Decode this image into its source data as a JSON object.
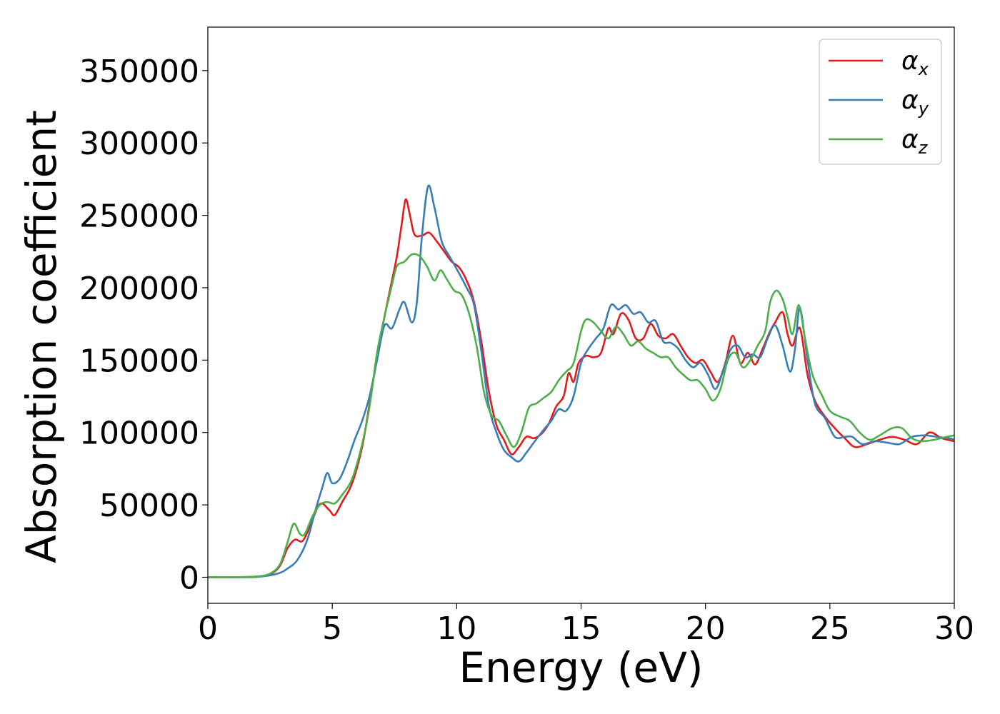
{
  "chart_data": {
    "type": "line",
    "title": "",
    "xlabel": "Energy (eV)",
    "ylabel": "Absorption coefficient",
    "xlim": [
      0,
      30
    ],
    "ylim": [
      -18000,
      380000
    ],
    "xticks": [
      0,
      5,
      10,
      15,
      20,
      25,
      30
    ],
    "yticks": [
      0,
      50000,
      100000,
      150000,
      200000,
      250000,
      300000,
      350000
    ],
    "grid": false,
    "legend_position": "top-right",
    "series": [
      {
        "name": "x",
        "legend_symbol": "α",
        "legend_subscript": "x",
        "color": "#e41a1c",
        "points": [
          [
            0,
            0
          ],
          [
            1,
            0
          ],
          [
            2,
            500
          ],
          [
            2.5,
            2000
          ],
          [
            2.9,
            8000
          ],
          [
            3.2,
            20000
          ],
          [
            3.5,
            26000
          ],
          [
            3.8,
            25000
          ],
          [
            4.1,
            35000
          ],
          [
            4.4,
            48000
          ],
          [
            4.6,
            51000
          ],
          [
            4.9,
            46000
          ],
          [
            5.1,
            43000
          ],
          [
            5.4,
            52000
          ],
          [
            5.8,
            65000
          ],
          [
            6.2,
            90000
          ],
          [
            6.5,
            120000
          ],
          [
            6.8,
            152000
          ],
          [
            7.1,
            180000
          ],
          [
            7.4,
            205000
          ],
          [
            7.6,
            222000
          ],
          [
            7.8,
            245000
          ],
          [
            7.95,
            261000
          ],
          [
            8.1,
            252000
          ],
          [
            8.3,
            237000
          ],
          [
            8.6,
            236000
          ],
          [
            8.9,
            238000
          ],
          [
            9.2,
            232000
          ],
          [
            9.5,
            225000
          ],
          [
            9.8,
            218000
          ],
          [
            10.1,
            214000
          ],
          [
            10.4,
            205000
          ],
          [
            10.7,
            190000
          ],
          [
            11.0,
            162000
          ],
          [
            11.3,
            128000
          ],
          [
            11.6,
            105000
          ],
          [
            11.9,
            95000
          ],
          [
            12.2,
            85000
          ],
          [
            12.5,
            90000
          ],
          [
            12.8,
            97000
          ],
          [
            13.1,
            96000
          ],
          [
            13.4,
            99000
          ],
          [
            13.7,
            106000
          ],
          [
            14.0,
            118000
          ],
          [
            14.3,
            125000
          ],
          [
            14.5,
            141000
          ],
          [
            14.7,
            135000
          ],
          [
            14.9,
            148000
          ],
          [
            15.2,
            153000
          ],
          [
            15.5,
            152000
          ],
          [
            15.8,
            155000
          ],
          [
            16.1,
            172000
          ],
          [
            16.3,
            168000
          ],
          [
            16.6,
            182000
          ],
          [
            16.9,
            178000
          ],
          [
            17.2,
            165000
          ],
          [
            17.5,
            165000
          ],
          [
            17.8,
            175000
          ],
          [
            18.1,
            167000
          ],
          [
            18.4,
            165000
          ],
          [
            18.7,
            168000
          ],
          [
            19.0,
            160000
          ],
          [
            19.3,
            152000
          ],
          [
            19.6,
            148000
          ],
          [
            19.9,
            150000
          ],
          [
            20.2,
            142000
          ],
          [
            20.5,
            135000
          ],
          [
            20.8,
            148000
          ],
          [
            21.1,
            167000
          ],
          [
            21.4,
            148000
          ],
          [
            21.7,
            155000
          ],
          [
            22.0,
            147000
          ],
          [
            22.3,
            158000
          ],
          [
            22.6,
            170000
          ],
          [
            22.8,
            176000
          ],
          [
            23.1,
            183000
          ],
          [
            23.3,
            168000
          ],
          [
            23.5,
            160000
          ],
          [
            23.8,
            172000
          ],
          [
            24.1,
            140000
          ],
          [
            24.4,
            122000
          ],
          [
            24.8,
            111000
          ],
          [
            25.2,
            103000
          ],
          [
            25.6,
            96000
          ],
          [
            26.0,
            90000
          ],
          [
            26.5,
            92000
          ],
          [
            27.0,
            95000
          ],
          [
            27.5,
            97000
          ],
          [
            28.0,
            95000
          ],
          [
            28.5,
            92000
          ],
          [
            29.0,
            100000
          ],
          [
            29.5,
            96000
          ],
          [
            30.0,
            94000
          ]
        ]
      },
      {
        "name": "y",
        "legend_symbol": "α",
        "legend_subscript": "y",
        "color": "#377eb8",
        "points": [
          [
            0,
            0
          ],
          [
            1,
            0
          ],
          [
            2,
            300
          ],
          [
            2.8,
            2500
          ],
          [
            3.2,
            6000
          ],
          [
            3.6,
            12000
          ],
          [
            4.0,
            26000
          ],
          [
            4.3,
            45000
          ],
          [
            4.6,
            62000
          ],
          [
            4.8,
            72000
          ],
          [
            5.0,
            65000
          ],
          [
            5.3,
            68000
          ],
          [
            5.6,
            80000
          ],
          [
            5.9,
            95000
          ],
          [
            6.2,
            108000
          ],
          [
            6.5,
            125000
          ],
          [
            6.8,
            150000
          ],
          [
            7.1,
            174000
          ],
          [
            7.4,
            172000
          ],
          [
            7.7,
            185000
          ],
          [
            7.9,
            190000
          ],
          [
            8.2,
            176000
          ],
          [
            8.4,
            190000
          ],
          [
            8.6,
            235000
          ],
          [
            8.85,
            270000
          ],
          [
            9.1,
            256000
          ],
          [
            9.4,
            232000
          ],
          [
            9.7,
            222000
          ],
          [
            10.0,
            213000
          ],
          [
            10.4,
            200000
          ],
          [
            10.7,
            188000
          ],
          [
            11.0,
            155000
          ],
          [
            11.3,
            118000
          ],
          [
            11.6,
            100000
          ],
          [
            11.9,
            88000
          ],
          [
            12.2,
            83000
          ],
          [
            12.5,
            80000
          ],
          [
            12.8,
            86000
          ],
          [
            13.1,
            93000
          ],
          [
            13.5,
            102000
          ],
          [
            13.8,
            108000
          ],
          [
            14.1,
            116000
          ],
          [
            14.4,
            115000
          ],
          [
            14.7,
            125000
          ],
          [
            15.0,
            148000
          ],
          [
            15.3,
            158000
          ],
          [
            15.6,
            165000
          ],
          [
            15.9,
            172000
          ],
          [
            16.2,
            188000
          ],
          [
            16.5,
            185000
          ],
          [
            16.8,
            188000
          ],
          [
            17.1,
            182000
          ],
          [
            17.4,
            183000
          ],
          [
            17.7,
            176000
          ],
          [
            18.0,
            177000
          ],
          [
            18.3,
            163000
          ],
          [
            18.6,
            162000
          ],
          [
            18.9,
            158000
          ],
          [
            19.2,
            150000
          ],
          [
            19.5,
            145000
          ],
          [
            19.8,
            148000
          ],
          [
            20.1,
            140000
          ],
          [
            20.4,
            130000
          ],
          [
            20.7,
            142000
          ],
          [
            21.0,
            157000
          ],
          [
            21.3,
            160000
          ],
          [
            21.6,
            152000
          ],
          [
            21.9,
            154000
          ],
          [
            22.2,
            152000
          ],
          [
            22.5,
            165000
          ],
          [
            22.8,
            174000
          ],
          [
            23.1,
            160000
          ],
          [
            23.4,
            142000
          ],
          [
            23.6,
            158000
          ],
          [
            23.8,
            186000
          ],
          [
            24.1,
            150000
          ],
          [
            24.4,
            120000
          ],
          [
            24.8,
            110000
          ],
          [
            25.2,
            97000
          ],
          [
            25.6,
            97000
          ],
          [
            25.9,
            97000
          ],
          [
            26.3,
            92000
          ],
          [
            26.8,
            94000
          ],
          [
            27.3,
            93000
          ],
          [
            27.8,
            92000
          ],
          [
            28.3,
            97000
          ],
          [
            28.8,
            98000
          ],
          [
            29.3,
            97000
          ],
          [
            29.8,
            96000
          ],
          [
            30.0,
            95000
          ]
        ]
      },
      {
        "name": "z",
        "legend_symbol": "α",
        "legend_subscript": "z",
        "color": "#4daf4a",
        "points": [
          [
            0,
            0
          ],
          [
            1,
            0
          ],
          [
            2,
            600
          ],
          [
            2.5,
            2500
          ],
          [
            2.9,
            9000
          ],
          [
            3.2,
            24000
          ],
          [
            3.45,
            37000
          ],
          [
            3.7,
            30000
          ],
          [
            3.9,
            30000
          ],
          [
            4.2,
            42000
          ],
          [
            4.5,
            50000
          ],
          [
            4.8,
            52000
          ],
          [
            5.1,
            51000
          ],
          [
            5.4,
            57000
          ],
          [
            5.8,
            68000
          ],
          [
            6.2,
            92000
          ],
          [
            6.5,
            118000
          ],
          [
            6.8,
            155000
          ],
          [
            7.1,
            180000
          ],
          [
            7.4,
            202000
          ],
          [
            7.6,
            215000
          ],
          [
            7.9,
            218000
          ],
          [
            8.2,
            223000
          ],
          [
            8.5,
            222000
          ],
          [
            8.8,
            215000
          ],
          [
            9.1,
            205000
          ],
          [
            9.35,
            212000
          ],
          [
            9.6,
            206000
          ],
          [
            9.9,
            198000
          ],
          [
            10.2,
            195000
          ],
          [
            10.5,
            182000
          ],
          [
            10.8,
            160000
          ],
          [
            11.1,
            128000
          ],
          [
            11.4,
            112000
          ],
          [
            11.7,
            108000
          ],
          [
            12.0,
            98000
          ],
          [
            12.3,
            90000
          ],
          [
            12.6,
            100000
          ],
          [
            12.9,
            117000
          ],
          [
            13.2,
            120000
          ],
          [
            13.5,
            124000
          ],
          [
            13.8,
            128000
          ],
          [
            14.1,
            136000
          ],
          [
            14.4,
            142000
          ],
          [
            14.7,
            148000
          ],
          [
            15.0,
            170000
          ],
          [
            15.2,
            178000
          ],
          [
            15.5,
            176000
          ],
          [
            15.8,
            170000
          ],
          [
            16.1,
            165000
          ],
          [
            16.4,
            173000
          ],
          [
            16.7,
            168000
          ],
          [
            17.0,
            160000
          ],
          [
            17.3,
            163000
          ],
          [
            17.6,
            158000
          ],
          [
            17.9,
            155000
          ],
          [
            18.2,
            152000
          ],
          [
            18.5,
            152000
          ],
          [
            18.8,
            145000
          ],
          [
            19.1,
            140000
          ],
          [
            19.4,
            136000
          ],
          [
            19.7,
            136000
          ],
          [
            20.0,
            130000
          ],
          [
            20.3,
            122000
          ],
          [
            20.6,
            130000
          ],
          [
            20.9,
            150000
          ],
          [
            21.2,
            155000
          ],
          [
            21.5,
            145000
          ],
          [
            21.8,
            150000
          ],
          [
            22.1,
            160000
          ],
          [
            22.4,
            170000
          ],
          [
            22.6,
            190000
          ],
          [
            22.85,
            198000
          ],
          [
            23.1,
            192000
          ],
          [
            23.3,
            180000
          ],
          [
            23.5,
            168000
          ],
          [
            23.75,
            188000
          ],
          [
            24.0,
            165000
          ],
          [
            24.3,
            140000
          ],
          [
            24.7,
            125000
          ],
          [
            25.0,
            115000
          ],
          [
            25.4,
            111000
          ],
          [
            25.8,
            108000
          ],
          [
            26.2,
            100000
          ],
          [
            26.6,
            95000
          ],
          [
            27.0,
            98000
          ],
          [
            27.5,
            103000
          ],
          [
            27.9,
            103000
          ],
          [
            28.3,
            96000
          ],
          [
            28.7,
            94000
          ],
          [
            29.2,
            95000
          ],
          [
            29.7,
            97000
          ],
          [
            30.0,
            98000
          ]
        ]
      }
    ]
  }
}
